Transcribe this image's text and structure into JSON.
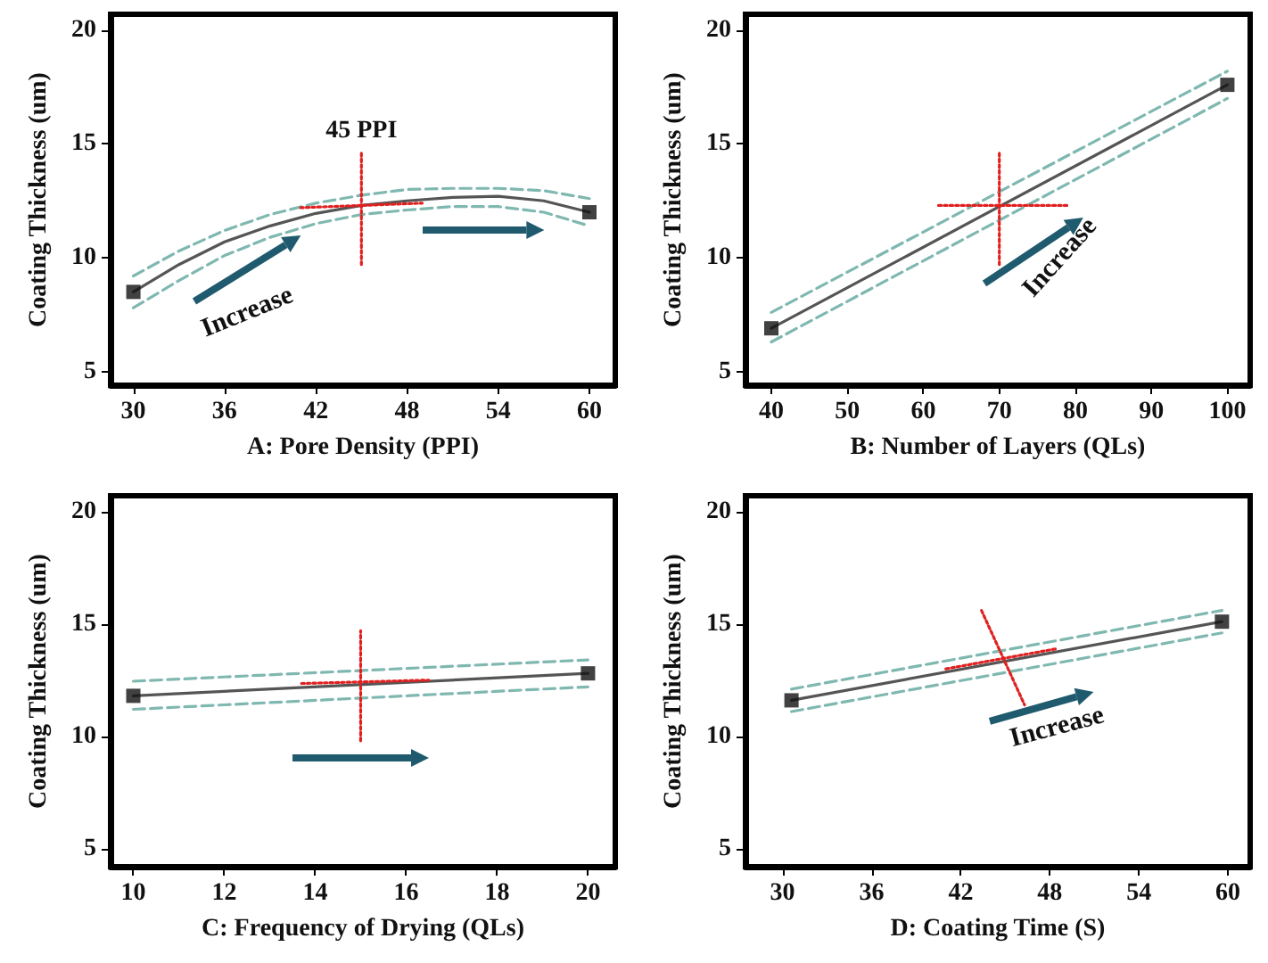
{
  "chart_data": [
    {
      "type": "line",
      "xlabel": "A: Pore Density (PPI)",
      "ylabel": "Coating Thickness (um)",
      "xlim": [
        28.5,
        61.7
      ],
      "ylim": [
        4.4,
        20.7
      ],
      "xticks": [
        30,
        36,
        42,
        48,
        54,
        60
      ],
      "yticks": [
        5,
        10,
        15,
        20
      ],
      "grid": false,
      "marker": "none",
      "line_style": "solid",
      "annotations": [
        "Increase",
        {
          "text": "45 PPI",
          "x": 45,
          "y": 15
        }
      ],
      "series": [
        {
          "color": "#555555",
          "x": [
            30,
            33,
            36,
            39,
            42,
            45,
            48,
            51,
            54,
            57,
            60
          ],
          "values": [
            8.5,
            9.7,
            10.7,
            11.4,
            11.95,
            12.3,
            12.5,
            12.65,
            12.7,
            12.5,
            12.0
          ]
        },
        {
          "color": "#7fb8b0",
          "line_style": "dashed",
          "x": [
            30,
            33,
            36,
            39,
            42,
            45,
            48,
            51,
            54,
            57,
            60
          ],
          "values": [
            9.2,
            10.3,
            11.2,
            11.9,
            12.4,
            12.75,
            13.0,
            13.05,
            13.05,
            12.95,
            12.6
          ]
        },
        {
          "color": "#7fb8b0",
          "line_style": "dashed",
          "x": [
            30,
            33,
            36,
            39,
            42,
            45,
            48,
            51,
            54,
            57,
            60
          ],
          "values": [
            7.8,
            9.0,
            10.1,
            10.9,
            11.5,
            11.9,
            12.1,
            12.25,
            12.25,
            12.0,
            11.4
          ]
        },
        {
          "color": "#e02020",
          "line_style": "dotted",
          "x": [
            41,
            49
          ],
          "values": [
            12.2,
            12.4
          ]
        },
        {
          "color": "#e02020",
          "line_style": "dotted",
          "x": [
            45,
            45
          ],
          "values": [
            9.7,
            14.7
          ]
        },
        {
          "type": "scatter",
          "marker": "square",
          "color": "#111111",
          "x": [
            30,
            60
          ],
          "values": [
            8.5,
            12.0
          ]
        }
      ]
    },
    {
      "type": "line",
      "xlabel": "B: Number of Layers (QLs)",
      "ylabel": "Coating Thickness (um)",
      "xlim": [
        36.6,
        103
      ],
      "ylim": [
        4.4,
        20.7
      ],
      "xticks": [
        40,
        50,
        60,
        70,
        80,
        90,
        100
      ],
      "yticks": [
        5,
        10,
        15,
        20
      ],
      "grid": false,
      "marker": "none",
      "line_style": "solid",
      "annotations": [
        "Increase"
      ],
      "series": [
        {
          "color": "#555555",
          "x": [
            40,
            100
          ],
          "values": [
            6.9,
            17.6
          ]
        },
        {
          "color": "#7fb8b0",
          "line_style": "dashed",
          "x": [
            40,
            100
          ],
          "values": [
            7.6,
            18.2
          ]
        },
        {
          "color": "#7fb8b0",
          "line_style": "dashed",
          "x": [
            40,
            100
          ],
          "values": [
            6.3,
            17.0
          ]
        },
        {
          "color": "#e02020",
          "line_style": "dotted",
          "x": [
            62,
            79
          ],
          "values": [
            12.3,
            12.3
          ]
        },
        {
          "color": "#e02020",
          "line_style": "dotted",
          "x": [
            70,
            70
          ],
          "values": [
            9.7,
            14.7
          ]
        },
        {
          "type": "scatter",
          "marker": "square",
          "color": "#111111",
          "x": [
            40,
            100
          ],
          "values": [
            6.9,
            17.6
          ]
        }
      ]
    },
    {
      "type": "line",
      "xlabel": "C: Frequency of Drying (QLs)",
      "ylabel": "Coating Thickness (um)",
      "xlim": [
        9.5,
        20.6
      ],
      "ylim": [
        4.2,
        20.7
      ],
      "xticks": [
        10,
        12,
        14,
        16,
        18,
        20
      ],
      "yticks": [
        5,
        10,
        15,
        20
      ],
      "grid": false,
      "marker": "none",
      "line_style": "solid",
      "series": [
        {
          "color": "#555555",
          "x": [
            10,
            20
          ],
          "values": [
            11.8,
            12.8
          ]
        },
        {
          "color": "#7fb8b0",
          "line_style": "dashed",
          "x": [
            10,
            20
          ],
          "values": [
            12.45,
            13.4
          ]
        },
        {
          "color": "#7fb8b0",
          "line_style": "dashed",
          "x": [
            10,
            20
          ],
          "values": [
            11.2,
            12.2
          ]
        },
        {
          "color": "#e02020",
          "line_style": "dotted",
          "x": [
            13.7,
            16.5
          ],
          "values": [
            12.35,
            12.5
          ]
        },
        {
          "color": "#e02020",
          "line_style": "dotted",
          "x": [
            15,
            15
          ],
          "values": [
            9.8,
            14.7
          ]
        },
        {
          "type": "scatter",
          "marker": "square",
          "color": "#111111",
          "x": [
            10,
            20
          ],
          "values": [
            11.8,
            12.8
          ]
        }
      ]
    },
    {
      "type": "line",
      "xlabel": "D: Coating Time (S)",
      "ylabel": "Coating Thickness (um)",
      "xlim": [
        27.5,
        61.5
      ],
      "ylim": [
        4.2,
        20.7
      ],
      "xticks": [
        30,
        36,
        42,
        48,
        54,
        60
      ],
      "yticks": [
        5,
        10,
        15,
        20
      ],
      "grid": false,
      "marker": "none",
      "line_style": "solid",
      "annotations": [
        "Increase"
      ],
      "series": [
        {
          "color": "#555555",
          "x": [
            30.6,
            59.6
          ],
          "values": [
            11.6,
            15.1
          ]
        },
        {
          "color": "#7fb8b0",
          "line_style": "dashed",
          "x": [
            30.6,
            59.6
          ],
          "values": [
            12.1,
            15.6
          ]
        },
        {
          "color": "#7fb8b0",
          "line_style": "dashed",
          "x": [
            30.6,
            59.6
          ],
          "values": [
            11.1,
            14.6
          ]
        },
        {
          "color": "#e02020",
          "line_style": "dotted",
          "x": [
            41,
            48.5
          ],
          "values": [
            13.0,
            13.9
          ]
        },
        {
          "color": "#e02020",
          "line_style": "dotted",
          "x": [
            43.4,
            46.3
          ],
          "values": [
            15.6,
            11.4
          ]
        },
        {
          "type": "scatter",
          "marker": "square",
          "color": "#111111",
          "x": [
            30.6,
            59.6
          ],
          "values": [
            11.6,
            15.1
          ]
        }
      ]
    }
  ]
}
